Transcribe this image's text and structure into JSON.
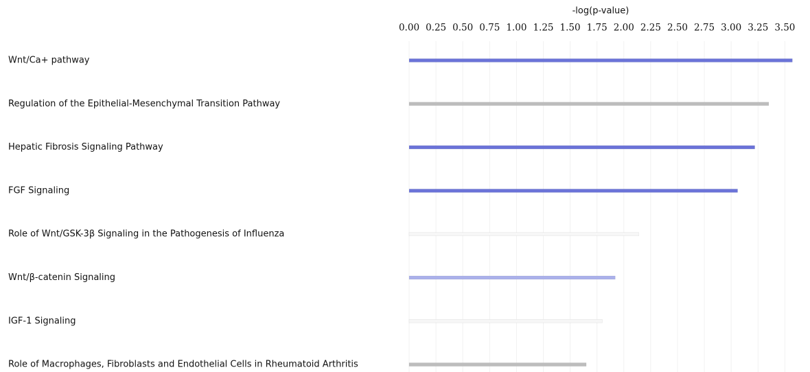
{
  "chart_data": {
    "type": "hbar",
    "x_label": "-log(p-value)",
    "categories": [
      "Wnt/Ca+ pathway",
      "Regulation of the Epithelial-Mesenchymal Transition Pathway",
      "Hepatic Fibrosis Signaling Pathway",
      "FGF Signaling",
      "Role of Wnt/GSK-3β Signaling in the Pathogenesis of Influenza",
      "Wnt/β-catenin Signaling",
      "IGF-1 Signaling",
      "Role of Macrophages, Fibroblasts and Endothelial Cells in Rheumatoid Arthritis"
    ],
    "values": [
      3.57,
      3.35,
      3.22,
      3.06,
      2.14,
      1.92,
      1.8,
      1.65
    ],
    "colors": [
      "#6b73d8",
      "#bdbdbd",
      "#6b73d8",
      "#6b73d8",
      "#f7f7f7",
      "#abb1ea",
      "#f6f6f6",
      "#bdbdbd"
    ],
    "xlim": [
      0,
      3.6
    ],
    "xticks": [
      {
        "value": 0,
        "label": "0.00"
      },
      {
        "value": 0.25,
        "label": "0.25"
      },
      {
        "value": 0.5,
        "label": "0.50"
      },
      {
        "value": 0.75,
        "label": "0.75"
      },
      {
        "value": 1,
        "label": "1.00"
      },
      {
        "value": 1.25,
        "label": "1.25"
      },
      {
        "value": 1.5,
        "label": "1.50"
      },
      {
        "value": 1.75,
        "label": "1.75"
      },
      {
        "value": 2,
        "label": "2.00"
      },
      {
        "value": 2.25,
        "label": "2.25"
      },
      {
        "value": 2.5,
        "label": "2.50"
      },
      {
        "value": 2.75,
        "label": "2.75"
      },
      {
        "value": 3,
        "label": "3.00"
      },
      {
        "value": 3.25,
        "label": "3.25"
      },
      {
        "value": 3.5,
        "label": "3.50"
      }
    ],
    "grid": true
  }
}
